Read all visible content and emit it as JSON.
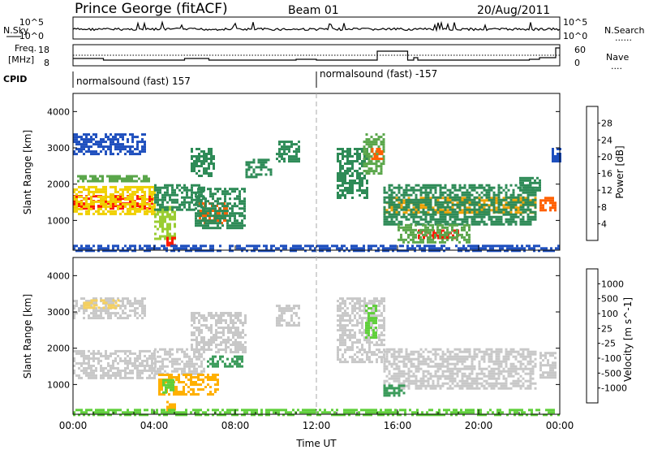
{
  "header": {
    "station": "Prince George (fitACF)",
    "beam": "Beam 01",
    "date": "20/Aug/2011"
  },
  "side_labels": {
    "nsky": "N.Sky",
    "nsearch": "N.Search",
    "freq_line1": "Freq.",
    "freq_line2": "[MHz]",
    "nave": "Nave",
    "cpid": "CPID",
    "dots": "......",
    "dots_short": "...."
  },
  "strip_ticks": {
    "noise_left": [
      "10^5",
      "10^0"
    ],
    "noise_right": [
      "10^5",
      "10^0"
    ],
    "freq_left": [
      "18",
      "8"
    ],
    "nave_right": [
      "60",
      "0"
    ]
  },
  "cpid_segments": [
    {
      "label": "normalsound (fast) 157",
      "start_hour": 0,
      "end_hour": 12
    },
    {
      "label": "normalsound (fast) -157",
      "start_hour": 12,
      "end_hour": 24
    }
  ],
  "colors": {
    "power": [
      "#1a1aff",
      "#1e4fbe",
      "#2e8b57",
      "#5aa64a",
      "#9acd32",
      "#f0d000",
      "#f0a000",
      "#ff6000",
      "#ff1a00"
    ],
    "velocity": [
      "#ff0000",
      "#ff7f00",
      "#ffb000",
      "#f5d060",
      "#c8c8c8",
      "#c8c8c8",
      "#5fcf3a",
      "#3a9b5a",
      "#2a5cbf",
      "#1a1aa8"
    ]
  },
  "chart_data": [
    {
      "type": "heatmap",
      "title": "Power",
      "ylabel": "Slant Range [km]",
      "colorbar_label": "Power [dB]",
      "colorbar_ticks": [
        "28",
        "24",
        "20",
        "16",
        "12",
        "8",
        "4"
      ],
      "x_range_hours": [
        0,
        24
      ],
      "ylim": [
        180,
        4500
      ],
      "yticks": [
        "4000",
        "3000",
        "2000",
        "1000"
      ],
      "regions": [
        {
          "t0": 0.0,
          "t1": 4.0,
          "r0": 1350,
          "r1": 1700,
          "level": 8
        },
        {
          "t0": 0.0,
          "t1": 4.0,
          "r0": 1150,
          "r1": 1950,
          "level": 5
        },
        {
          "t0": 0.2,
          "t1": 3.8,
          "r0": 2050,
          "r1": 2250,
          "level": 3
        },
        {
          "t0": 0.0,
          "t1": 3.5,
          "r0": 2800,
          "r1": 3400,
          "level": 1
        },
        {
          "t0": 4.0,
          "t1": 5.0,
          "r0": 500,
          "r1": 1400,
          "level": 4
        },
        {
          "t0": 4.6,
          "t1": 5.0,
          "r0": 300,
          "r1": 550,
          "level": 8
        },
        {
          "t0": 4.0,
          "t1": 6.5,
          "r0": 1300,
          "r1": 2000,
          "level": 2
        },
        {
          "t0": 6.2,
          "t1": 7.6,
          "r0": 900,
          "r1": 1500,
          "level": 7
        },
        {
          "t0": 6.0,
          "t1": 8.5,
          "r0": 800,
          "r1": 1900,
          "level": 2
        },
        {
          "t0": 5.8,
          "t1": 7.0,
          "r0": 2200,
          "r1": 3000,
          "level": 2
        },
        {
          "t0": 8.5,
          "t1": 9.8,
          "r0": 2200,
          "r1": 2700,
          "level": 2
        },
        {
          "t0": 10.0,
          "t1": 11.2,
          "r0": 2600,
          "r1": 3200,
          "level": 2
        },
        {
          "t0": 13.0,
          "t1": 14.5,
          "r0": 1600,
          "r1": 3000,
          "level": 2
        },
        {
          "t0": 14.3,
          "t1": 15.3,
          "r0": 2300,
          "r1": 3400,
          "level": 3
        },
        {
          "t0": 14.7,
          "t1": 15.2,
          "r0": 2700,
          "r1": 3000,
          "level": 7
        },
        {
          "t0": 15.3,
          "t1": 22.8,
          "r0": 1200,
          "r1": 1650,
          "level": 6
        },
        {
          "t0": 15.3,
          "t1": 22.8,
          "r0": 900,
          "r1": 2000,
          "level": 2
        },
        {
          "t0": 17.0,
          "t1": 19.0,
          "r0": 500,
          "r1": 750,
          "level": 8
        },
        {
          "t0": 16.0,
          "t1": 19.5,
          "r0": 400,
          "r1": 900,
          "level": 3
        },
        {
          "t0": 22.0,
          "t1": 23.0,
          "r0": 1800,
          "r1": 2200,
          "level": 2
        },
        {
          "t0": 23.0,
          "t1": 23.8,
          "r0": 1300,
          "r1": 1650,
          "level": 7
        },
        {
          "t0": 23.6,
          "t1": 24.0,
          "r0": 2600,
          "r1": 3000,
          "level": 1
        },
        {
          "t0": 0.0,
          "t1": 24.0,
          "r0": 190,
          "r1": 330,
          "level": 1
        }
      ]
    },
    {
      "type": "heatmap",
      "title": "Velocity",
      "ylabel": "Slant Range [km]",
      "xlabel": "Time UT",
      "colorbar_label": "Velocity [m s^-1]",
      "colorbar_ticks": [
        "1000",
        "500",
        "100",
        "25",
        "-25",
        "-100",
        "-500",
        "-1000"
      ],
      "x_range_hours": [
        0,
        24
      ],
      "ylim": [
        180,
        4500
      ],
      "yticks": [
        "4000",
        "3000",
        "2000",
        "1000"
      ],
      "xticks": [
        "00:00",
        "04:00",
        "08:00",
        "12:00",
        "16:00",
        "20:00",
        "00:00"
      ],
      "regions": [
        {
          "t0": 0.0,
          "t1": 4.0,
          "r0": 1150,
          "r1": 1950,
          "level": 4
        },
        {
          "t0": 0.0,
          "t1": 3.5,
          "r0": 2800,
          "r1": 3400,
          "level": 4
        },
        {
          "t0": 0.5,
          "t1": 2.2,
          "r0": 3100,
          "r1": 3350,
          "level": 3
        },
        {
          "t0": 4.0,
          "t1": 6.5,
          "r0": 1300,
          "r1": 2000,
          "level": 4
        },
        {
          "t0": 4.2,
          "t1": 7.2,
          "r0": 750,
          "r1": 1300,
          "level": 2
        },
        {
          "t0": 4.4,
          "t1": 5.0,
          "r0": 800,
          "r1": 1150,
          "level": 6
        },
        {
          "t0": 4.6,
          "t1": 5.0,
          "r0": 280,
          "r1": 550,
          "level": 2
        },
        {
          "t0": 6.6,
          "t1": 8.4,
          "r0": 1500,
          "r1": 1800,
          "level": 7
        },
        {
          "t0": 5.8,
          "t1": 8.5,
          "r0": 1900,
          "r1": 3000,
          "level": 4
        },
        {
          "t0": 10.0,
          "t1": 11.2,
          "r0": 2600,
          "r1": 3200,
          "level": 4
        },
        {
          "t0": 13.0,
          "t1": 15.3,
          "r0": 1600,
          "r1": 3400,
          "level": 4
        },
        {
          "t0": 14.4,
          "t1": 15.0,
          "r0": 2300,
          "r1": 3200,
          "level": 6
        },
        {
          "t0": 15.3,
          "t1": 22.8,
          "r0": 900,
          "r1": 2000,
          "level": 4
        },
        {
          "t0": 15.3,
          "t1": 16.3,
          "r0": 700,
          "r1": 1000,
          "level": 7
        },
        {
          "t0": 23.0,
          "t1": 23.8,
          "r0": 1200,
          "r1": 1900,
          "level": 4
        },
        {
          "t0": 0.0,
          "t1": 24.0,
          "r0": 190,
          "r1": 330,
          "level": 6
        }
      ]
    }
  ]
}
